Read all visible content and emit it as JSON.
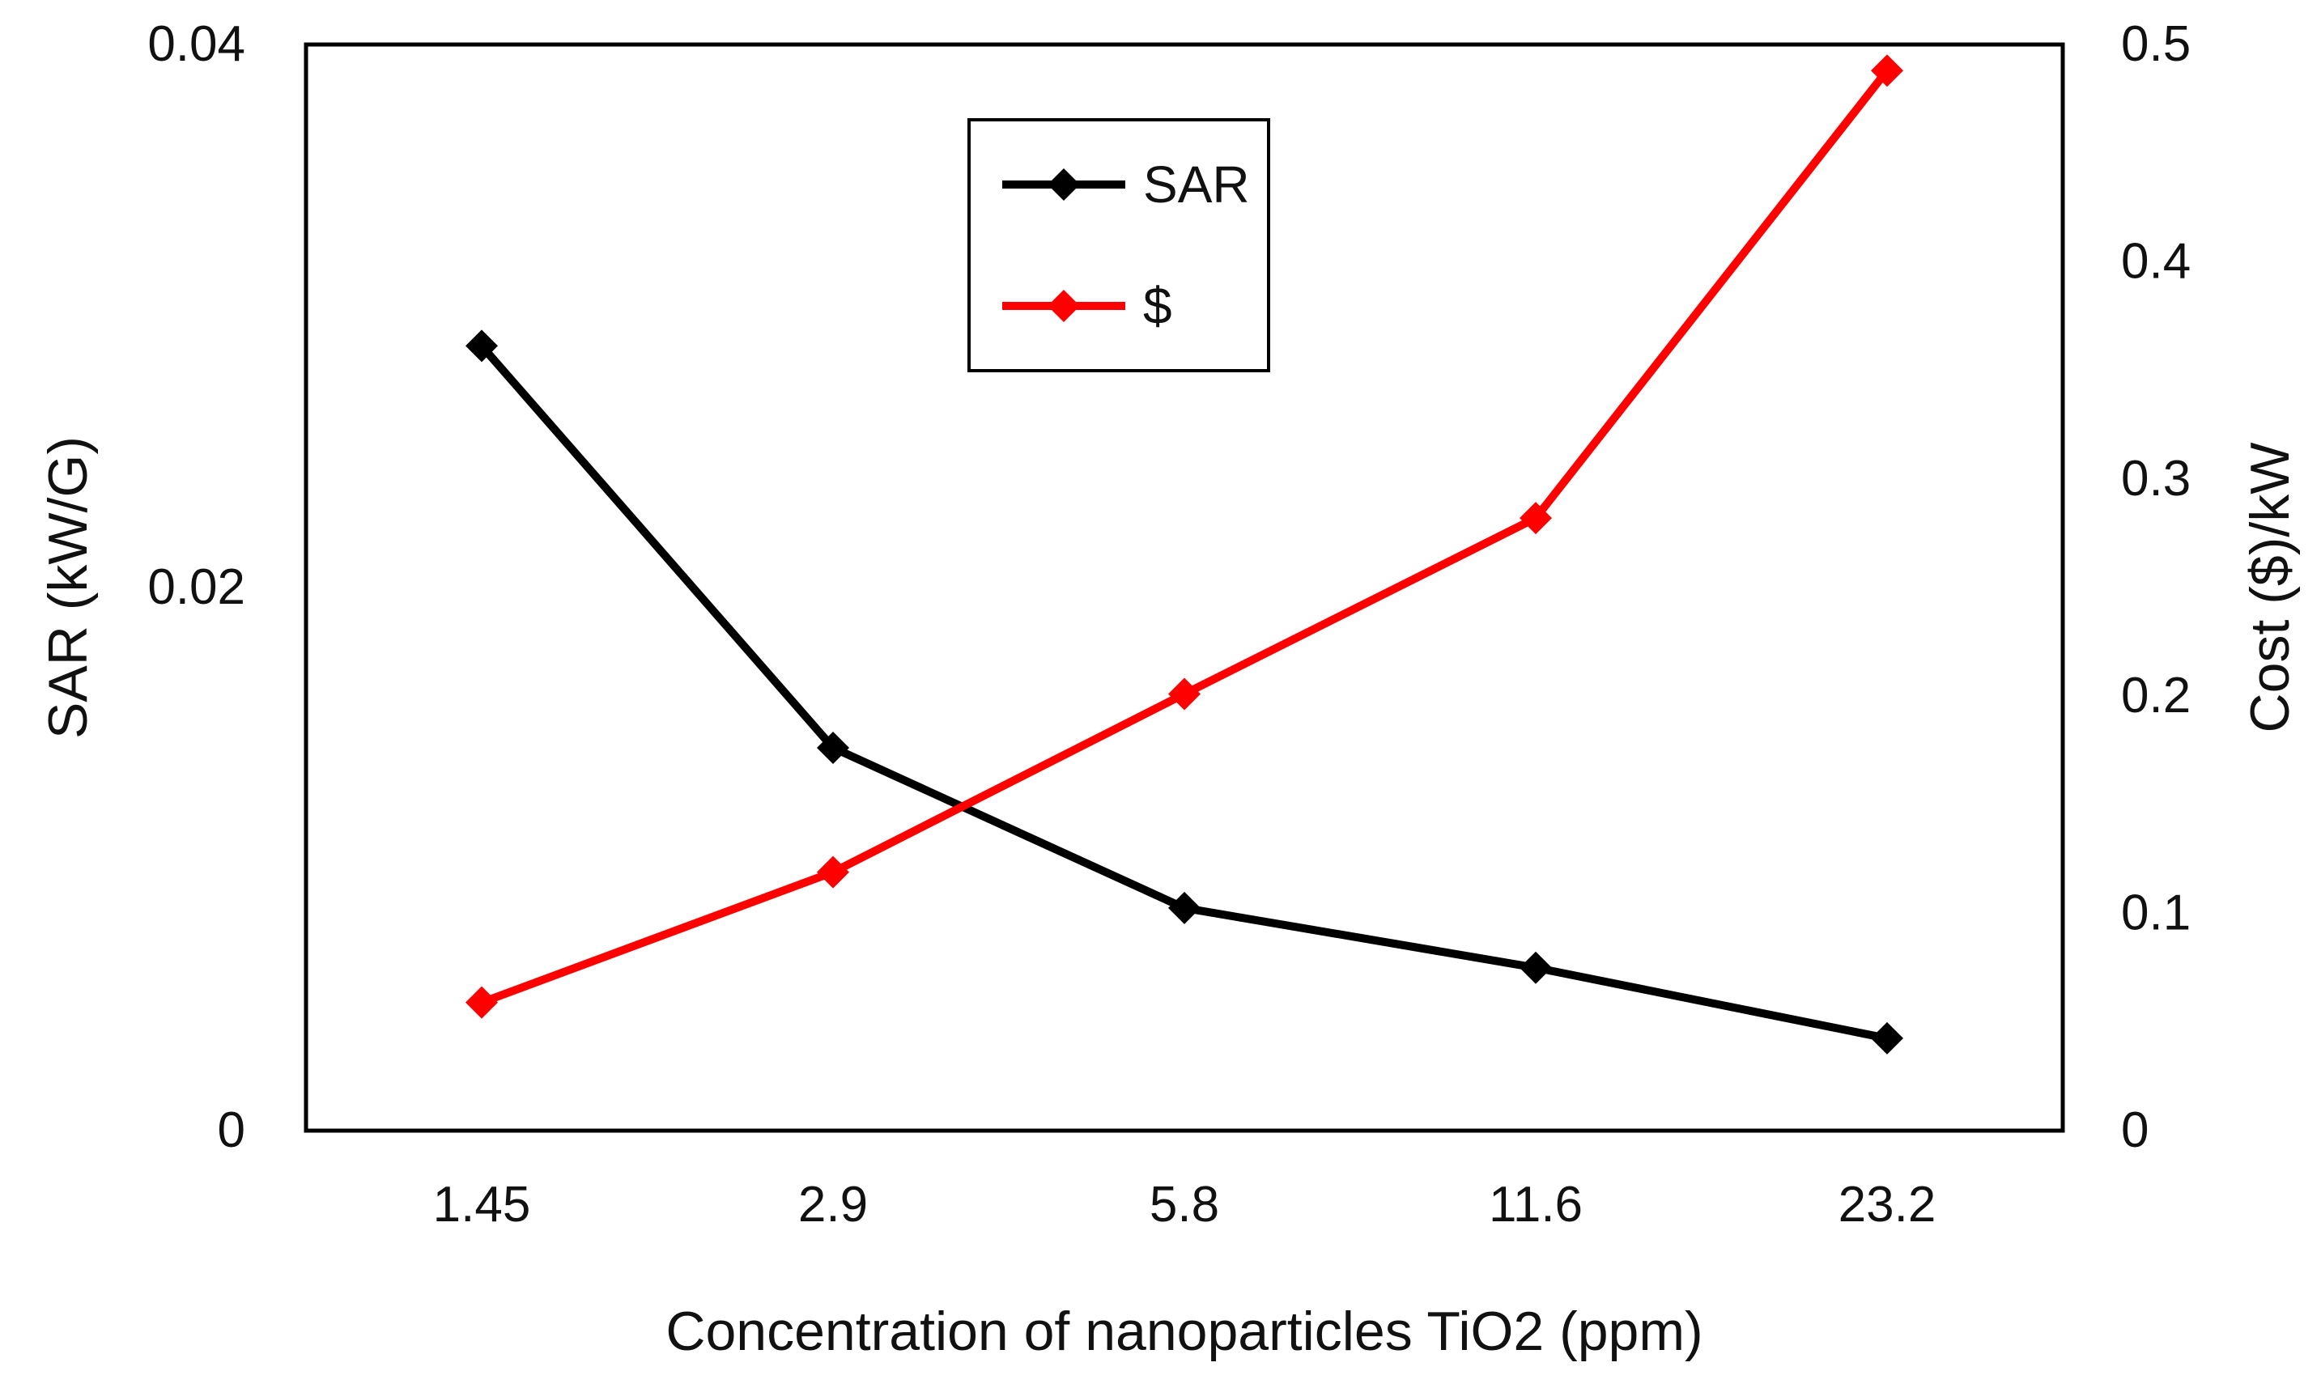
{
  "chart_data": {
    "type": "line",
    "title": "",
    "xlabel": "Concentration of nanoparticles TiO2 (ppm)",
    "ylabel": "SAR (kW/G)",
    "y2label": "Cost ($)/kW",
    "categories": [
      "1.45",
      "2.9",
      "5.8",
      "11.6",
      "23.2"
    ],
    "ylim": [
      0,
      0.04
    ],
    "y2lim": [
      0,
      0.5
    ],
    "yticks": [
      "0",
      "0.02",
      "0.04"
    ],
    "y2ticks": [
      "0",
      "0.1",
      "0.2",
      "0.3",
      "0.4",
      "0.5"
    ],
    "grid": false,
    "legend_position": "top-center",
    "series": [
      {
        "name": "SAR",
        "axis": "left",
        "color": "#000000",
        "values": [
          0.0289,
          0.0141,
          0.0082,
          0.006,
          0.0034
        ]
      },
      {
        "name": "$",
        "axis": "right",
        "color": "#ff0000",
        "values": [
          0.059,
          0.119,
          0.201,
          0.282,
          0.488
        ]
      }
    ]
  }
}
